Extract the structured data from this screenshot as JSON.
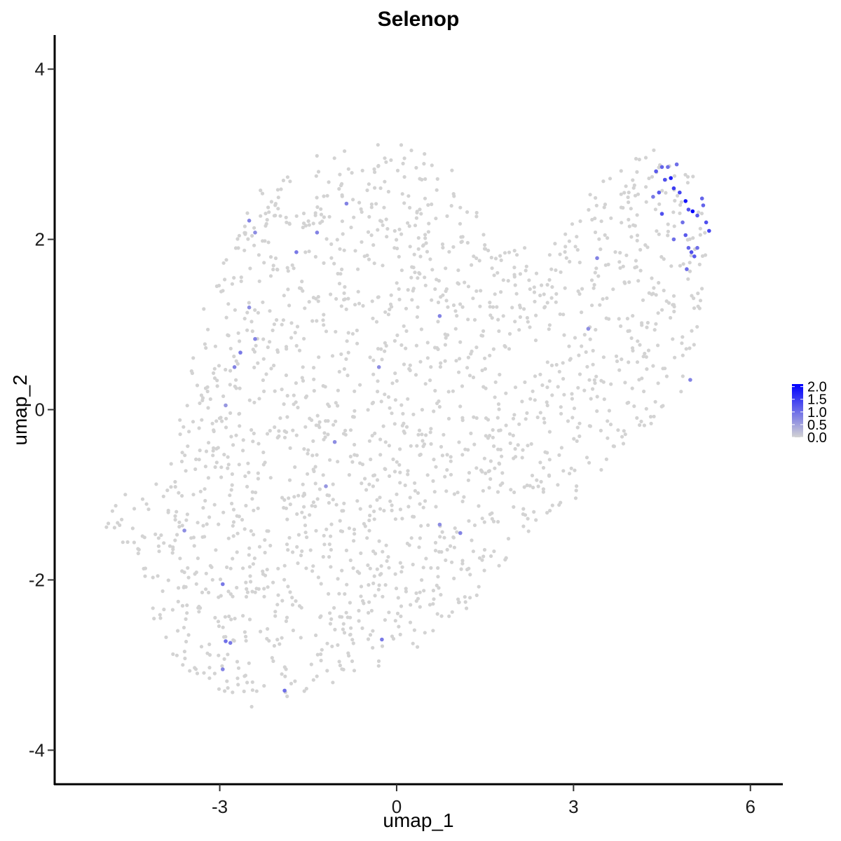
{
  "chart_data": {
    "type": "scatter",
    "title": "Selenop",
    "xlabel": "umap_1",
    "ylabel": "umap_2",
    "xlim": [
      -5.8,
      6.55
    ],
    "ylim": [
      -4.4,
      4.4
    ],
    "x_ticks": [
      -3,
      0,
      3,
      6
    ],
    "x_tick_labels": [
      "-3",
      "0",
      "3",
      "6"
    ],
    "y_ticks": [
      -4,
      -2,
      0,
      2,
      4
    ],
    "y_tick_labels": [
      "-4",
      "-2",
      "0",
      "2",
      "4"
    ],
    "grid": false,
    "color_scale": {
      "low_color": "#d3d3d3",
      "high_color": "#0000ff",
      "min": 0.0,
      "max": 2.1,
      "breaks": [
        2.0,
        1.5,
        1.0,
        0.5,
        0.0
      ],
      "break_labels": [
        "2.0",
        "1.5",
        "1.0",
        "0.5",
        "0.0"
      ],
      "legend_placement": "right"
    },
    "expressing_points": [
      {
        "x": 4.4,
        "y": 2.8,
        "v": 1.2
      },
      {
        "x": 4.5,
        "y": 2.85,
        "v": 1.1
      },
      {
        "x": 4.55,
        "y": 2.7,
        "v": 1.3
      },
      {
        "x": 4.65,
        "y": 2.72,
        "v": 1.8
      },
      {
        "x": 4.7,
        "y": 2.6,
        "v": 1.5
      },
      {
        "x": 4.45,
        "y": 2.55,
        "v": 1.2
      },
      {
        "x": 4.8,
        "y": 2.55,
        "v": 1.4
      },
      {
        "x": 4.9,
        "y": 2.45,
        "v": 1.9
      },
      {
        "x": 4.95,
        "y": 2.35,
        "v": 1.3
      },
      {
        "x": 5.02,
        "y": 2.33,
        "v": 2.1
      },
      {
        "x": 5.1,
        "y": 2.28,
        "v": 1.2
      },
      {
        "x": 5.2,
        "y": 2.4,
        "v": 1.1
      },
      {
        "x": 5.25,
        "y": 2.2,
        "v": 1.3
      },
      {
        "x": 5.3,
        "y": 2.1,
        "v": 1.4
      },
      {
        "x": 4.85,
        "y": 2.2,
        "v": 1.0
      },
      {
        "x": 4.9,
        "y": 2.05,
        "v": 1.2
      },
      {
        "x": 5.0,
        "y": 1.85,
        "v": 1.3
      },
      {
        "x": 4.95,
        "y": 1.9,
        "v": 1.1
      },
      {
        "x": 5.05,
        "y": 1.8,
        "v": 1.2
      },
      {
        "x": 4.92,
        "y": 1.65,
        "v": 1.0
      },
      {
        "x": 4.5,
        "y": 2.3,
        "v": 1.3
      },
      {
        "x": 4.7,
        "y": 2.0,
        "v": 1.0
      },
      {
        "x": 4.6,
        "y": 2.85,
        "v": 1.0
      },
      {
        "x": 4.75,
        "y": 2.88,
        "v": 1.0
      },
      {
        "x": 4.35,
        "y": 2.5,
        "v": 0.9
      },
      {
        "x": 5.18,
        "y": 2.48,
        "v": 1.1
      },
      {
        "x": 5.1,
        "y": 1.9,
        "v": 1.0
      },
      {
        "x": 4.98,
        "y": 0.35,
        "v": 0.8
      },
      {
        "x": 3.25,
        "y": 0.95,
        "v": 0.7
      },
      {
        "x": 3.4,
        "y": 1.78,
        "v": 0.8
      },
      {
        "x": -2.5,
        "y": 2.22,
        "v": 0.8
      },
      {
        "x": -2.4,
        "y": 2.08,
        "v": 0.7
      },
      {
        "x": -1.7,
        "y": 1.85,
        "v": 0.9
      },
      {
        "x": -1.35,
        "y": 2.08,
        "v": 0.8
      },
      {
        "x": -0.85,
        "y": 2.42,
        "v": 0.8
      },
      {
        "x": -2.5,
        "y": 1.2,
        "v": 0.7
      },
      {
        "x": -2.4,
        "y": 0.83,
        "v": 0.8
      },
      {
        "x": -2.65,
        "y": 0.67,
        "v": 0.9
      },
      {
        "x": -2.75,
        "y": 0.5,
        "v": 0.8
      },
      {
        "x": -2.9,
        "y": 0.05,
        "v": 0.6
      },
      {
        "x": -0.3,
        "y": 0.5,
        "v": 0.7
      },
      {
        "x": 0.73,
        "y": 1.1,
        "v": 0.8
      },
      {
        "x": -1.05,
        "y": -0.38,
        "v": 0.7
      },
      {
        "x": -1.2,
        "y": -0.9,
        "v": 0.6
      },
      {
        "x": 0.73,
        "y": -1.35,
        "v": 0.7
      },
      {
        "x": 1.08,
        "y": -1.45,
        "v": 0.8
      },
      {
        "x": -3.6,
        "y": -1.42,
        "v": 0.7
      },
      {
        "x": -2.95,
        "y": -2.05,
        "v": 0.9
      },
      {
        "x": -2.9,
        "y": -2.72,
        "v": 1.0
      },
      {
        "x": -2.82,
        "y": -2.74,
        "v": 0.9
      },
      {
        "x": -2.95,
        "y": -3.05,
        "v": 0.8
      },
      {
        "x": -1.9,
        "y": -3.3,
        "v": 1.0
      },
      {
        "x": -0.25,
        "y": -2.7,
        "v": 0.9
      }
    ]
  }
}
